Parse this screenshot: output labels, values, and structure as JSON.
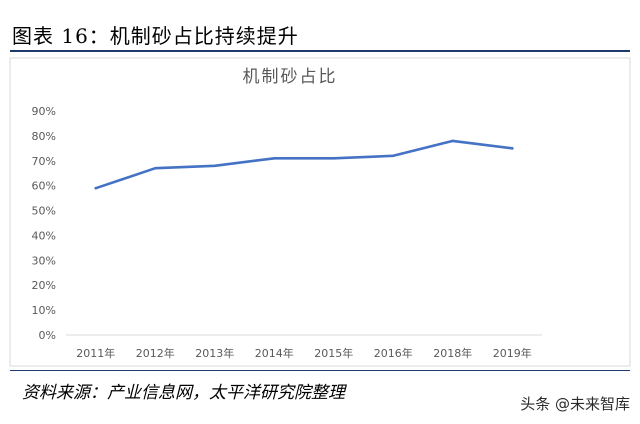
{
  "figure_title": "图表 16：机制砂占比持续提升",
  "source_note": "资料来源：产业信息网，太平洋研究院整理",
  "watermark": "头条 @未来智库",
  "colors": {
    "line": "#4472c4",
    "rule": "#1f3a6e",
    "axis_text": "#595959",
    "chart_title": "#595959"
  },
  "chart_data": {
    "type": "line",
    "title": "机制砂占比",
    "xlabel": "",
    "ylabel": "",
    "categories": [
      "2011年",
      "2012年",
      "2013年",
      "2014年",
      "2015年",
      "2016年",
      "2018年",
      "2019年"
    ],
    "values": [
      0.59,
      0.67,
      0.68,
      0.71,
      0.71,
      0.72,
      0.78,
      0.75
    ],
    "yticks": [
      "0%",
      "10%",
      "20%",
      "30%",
      "40%",
      "50%",
      "60%",
      "70%",
      "80%",
      "90%"
    ],
    "ylim": [
      0,
      0.9
    ],
    "grid": false,
    "legend": "none"
  }
}
